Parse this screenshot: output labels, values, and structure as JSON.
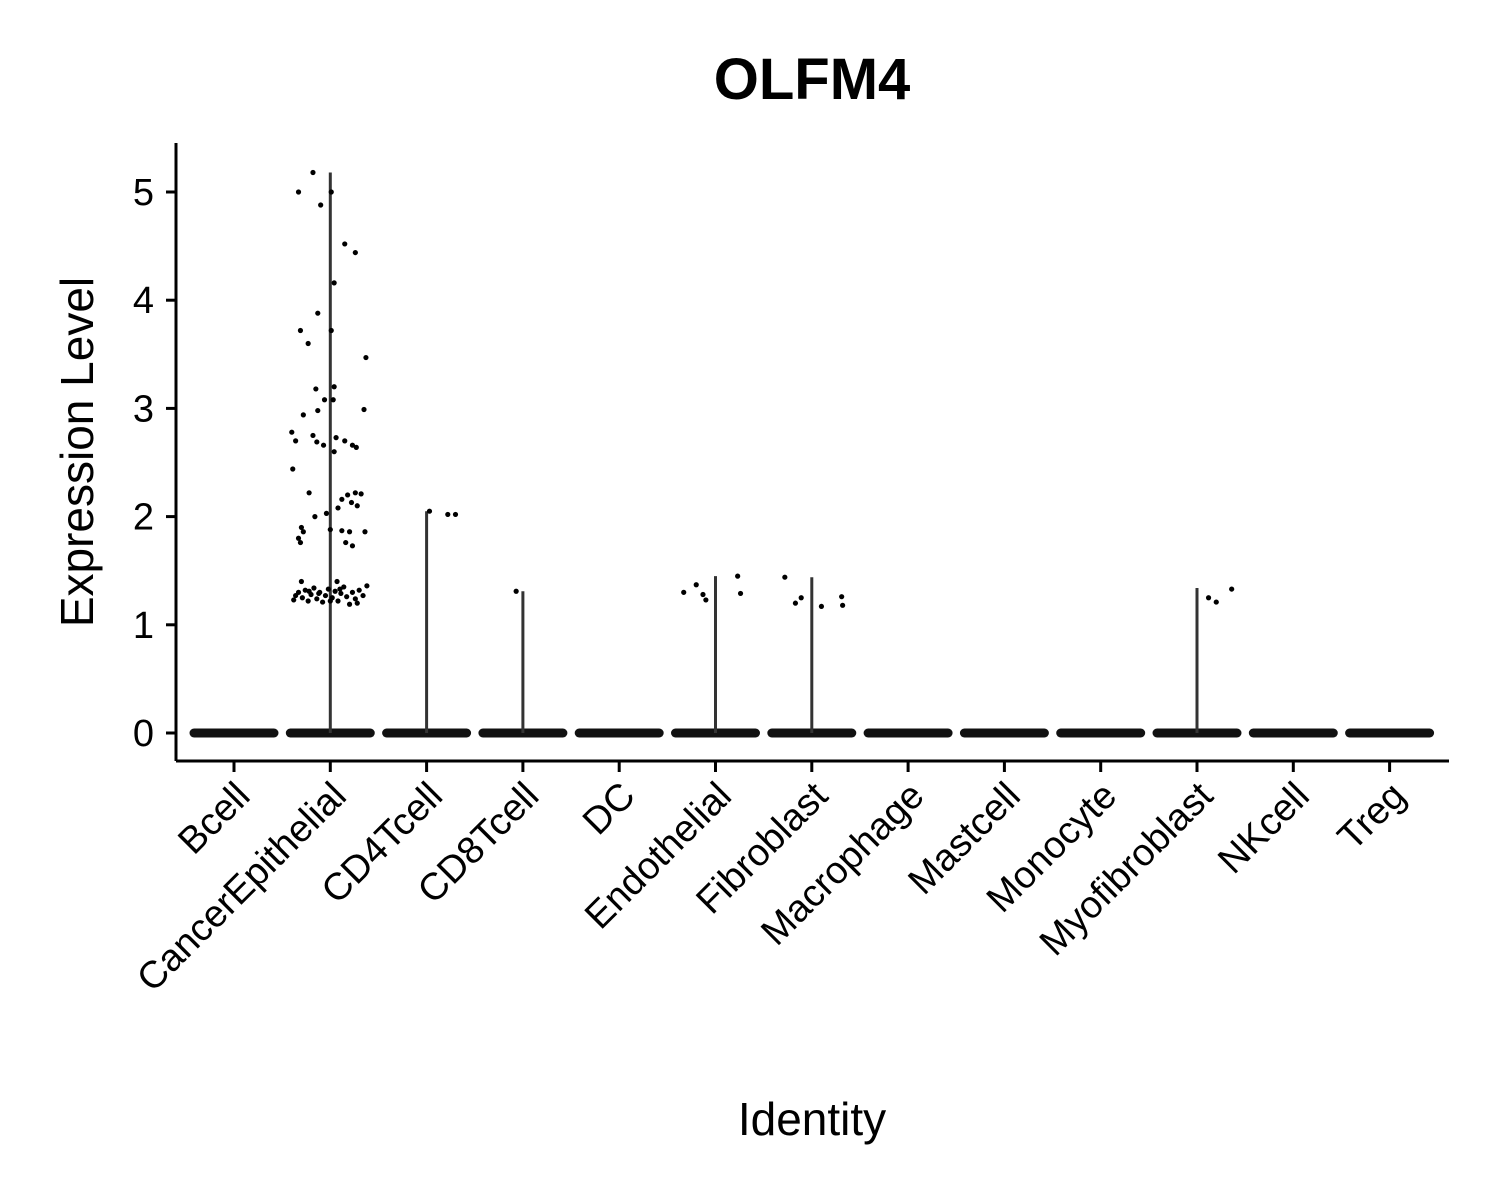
{
  "chart_data": {
    "type": "violin",
    "title": "OLFM4",
    "xlabel": "Identity",
    "ylabel": "Expression Level",
    "ylim": [
      -0.25,
      5.45
    ],
    "yticks": [
      0,
      1,
      2,
      3,
      4,
      5
    ],
    "ytick_labels": [
      "0",
      "1",
      "2",
      "3",
      "4",
      "5"
    ],
    "categories": [
      "Bcell",
      "CancerEpithelial",
      "CD4Tcell",
      "CD8Tcell",
      "DC",
      "Endothelial",
      "Fibroblast",
      "Macrophage",
      "Mastcell",
      "Monocyte",
      "Myofibroblast",
      "NKcell",
      "Treg"
    ],
    "max_values": [
      0,
      5.18,
      2.05,
      1.31,
      0,
      1.45,
      1.44,
      0,
      0,
      0,
      1.34,
      0,
      0
    ],
    "points": [
      [],
      [
        {
          "dx": -0.33,
          "y": 5.0
        },
        {
          "dx": -0.18,
          "y": 5.18
        },
        {
          "dx": -0.1,
          "y": 4.88
        },
        {
          "dx": 0.01,
          "y": 5.0
        },
        {
          "dx": 0.15,
          "y": 4.52
        },
        {
          "dx": 0.26,
          "y": 4.44
        },
        {
          "dx": 0.04,
          "y": 4.16
        },
        {
          "dx": -0.13,
          "y": 3.88
        },
        {
          "dx": -0.31,
          "y": 3.72
        },
        {
          "dx": 0.01,
          "y": 3.72
        },
        {
          "dx": -0.23,
          "y": 3.6
        },
        {
          "dx": 0.37,
          "y": 3.47
        },
        {
          "dx": 0.04,
          "y": 3.2
        },
        {
          "dx": -0.15,
          "y": 3.18
        },
        {
          "dx": -0.06,
          "y": 3.08
        },
        {
          "dx": 0.03,
          "y": 3.08
        },
        {
          "dx": -0.28,
          "y": 2.94
        },
        {
          "dx": -0.13,
          "y": 2.98
        },
        {
          "dx": 0.35,
          "y": 2.99
        },
        {
          "dx": -0.4,
          "y": 2.78
        },
        {
          "dx": -0.36,
          "y": 2.7
        },
        {
          "dx": -0.18,
          "y": 2.75
        },
        {
          "dx": -0.14,
          "y": 2.69
        },
        {
          "dx": -0.07,
          "y": 2.66
        },
        {
          "dx": 0.06,
          "y": 2.73
        },
        {
          "dx": 0.15,
          "y": 2.7
        },
        {
          "dx": 0.23,
          "y": 2.66
        },
        {
          "dx": 0.27,
          "y": 2.64
        },
        {
          "dx": 0.04,
          "y": 2.6
        },
        {
          "dx": -0.39,
          "y": 2.44
        },
        {
          "dx": -0.22,
          "y": 2.22
        },
        {
          "dx": 0.12,
          "y": 2.16
        },
        {
          "dx": 0.18,
          "y": 2.2
        },
        {
          "dx": 0.26,
          "y": 2.22
        },
        {
          "dx": 0.32,
          "y": 2.21
        },
        {
          "dx": 0.22,
          "y": 2.13
        },
        {
          "dx": 0.28,
          "y": 2.1
        },
        {
          "dx": 0.08,
          "y": 2.08
        },
        {
          "dx": -0.16,
          "y": 2.0
        },
        {
          "dx": -0.04,
          "y": 2.03
        },
        {
          "dx": -0.3,
          "y": 1.9
        },
        {
          "dx": -0.28,
          "y": 1.86
        },
        {
          "dx": -0.33,
          "y": 1.8
        },
        {
          "dx": -0.31,
          "y": 1.76
        },
        {
          "dx": 0.0,
          "y": 1.88
        },
        {
          "dx": 0.12,
          "y": 1.87
        },
        {
          "dx": 0.2,
          "y": 1.86
        },
        {
          "dx": 0.36,
          "y": 1.86
        },
        {
          "dx": 0.16,
          "y": 1.76
        },
        {
          "dx": 0.23,
          "y": 1.73
        },
        {
          "dx": -0.38,
          "y": 1.23
        },
        {
          "dx": -0.33,
          "y": 1.3
        },
        {
          "dx": -0.29,
          "y": 1.25
        },
        {
          "dx": -0.26,
          "y": 1.32
        },
        {
          "dx": -0.23,
          "y": 1.22
        },
        {
          "dx": -0.2,
          "y": 1.28
        },
        {
          "dx": -0.17,
          "y": 1.34
        },
        {
          "dx": -0.14,
          "y": 1.24
        },
        {
          "dx": -0.11,
          "y": 1.3
        },
        {
          "dx": -0.08,
          "y": 1.21
        },
        {
          "dx": -0.05,
          "y": 1.27
        },
        {
          "dx": -0.02,
          "y": 1.33
        },
        {
          "dx": 0.02,
          "y": 1.25
        },
        {
          "dx": 0.05,
          "y": 1.31
        },
        {
          "dx": 0.08,
          "y": 1.22
        },
        {
          "dx": 0.11,
          "y": 1.29
        },
        {
          "dx": 0.14,
          "y": 1.35
        },
        {
          "dx": 0.17,
          "y": 1.26
        },
        {
          "dx": 0.2,
          "y": 1.19
        },
        {
          "dx": 0.23,
          "y": 1.3
        },
        {
          "dx": 0.26,
          "y": 1.24
        },
        {
          "dx": 0.3,
          "y": 1.32
        },
        {
          "dx": 0.34,
          "y": 1.27
        },
        {
          "dx": 0.38,
          "y": 1.36
        },
        {
          "dx": -0.36,
          "y": 1.27
        },
        {
          "dx": -0.12,
          "y": 1.29
        },
        {
          "dx": 0.0,
          "y": 1.22
        },
        {
          "dx": 0.1,
          "y": 1.33
        },
        {
          "dx": -0.3,
          "y": 1.4
        },
        {
          "dx": 0.07,
          "y": 1.4
        },
        {
          "dx": 0.28,
          "y": 1.2
        },
        {
          "dx": -0.22,
          "y": 1.31
        }
      ],
      [
        {
          "dx": 0.03,
          "y": 2.05
        },
        {
          "dx": 0.22,
          "y": 2.02
        },
        {
          "dx": 0.3,
          "y": 2.02
        }
      ],
      [
        {
          "dx": -0.07,
          "y": 1.31
        }
      ],
      [],
      [
        {
          "dx": -0.33,
          "y": 1.3
        },
        {
          "dx": -0.2,
          "y": 1.37
        },
        {
          "dx": -0.13,
          "y": 1.28
        },
        {
          "dx": -0.1,
          "y": 1.23
        },
        {
          "dx": 0.23,
          "y": 1.45
        },
        {
          "dx": 0.26,
          "y": 1.29
        }
      ],
      [
        {
          "dx": -0.28,
          "y": 1.44
        },
        {
          "dx": -0.17,
          "y": 1.2
        },
        {
          "dx": -0.11,
          "y": 1.25
        },
        {
          "dx": 0.1,
          "y": 1.17
        },
        {
          "dx": 0.31,
          "y": 1.26
        },
        {
          "dx": 0.32,
          "y": 1.18
        }
      ],
      [],
      [],
      [],
      [
        {
          "dx": 0.12,
          "y": 1.25
        },
        {
          "dx": 0.2,
          "y": 1.21
        },
        {
          "dx": 0.36,
          "y": 1.33
        }
      ],
      [],
      []
    ]
  }
}
